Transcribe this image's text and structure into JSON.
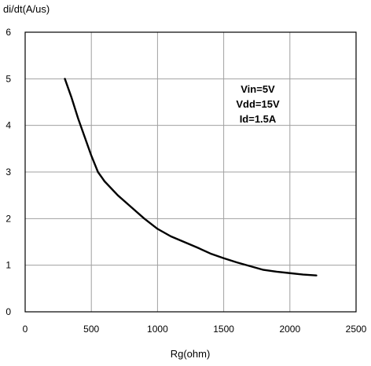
{
  "chart_data": {
    "type": "line",
    "title": "",
    "xlabel": "Rg(ohm)",
    "ylabel": "di/dt(A/us)",
    "xlim": [
      0,
      2500
    ],
    "ylim": [
      0,
      6
    ],
    "x_ticks": [
      0,
      500,
      1000,
      1500,
      2000,
      2500
    ],
    "y_ticks": [
      0,
      1,
      2,
      3,
      4,
      5,
      6
    ],
    "x_tick_labels": [
      "0",
      "500",
      "1000",
      "1500",
      "2000",
      "2500"
    ],
    "y_tick_labels": [
      "0",
      "1",
      "2",
      "3",
      "4",
      "5",
      "6"
    ],
    "grid": true,
    "legend": "none",
    "line_color": "#000000",
    "grid_color": "#a0a0a0",
    "annotations": [
      "Vin=5V",
      "Vdd=15V",
      "Id=1.5A"
    ],
    "series": [
      {
        "x": [
          300,
          350,
          400,
          450,
          500,
          550,
          600,
          700,
          800,
          900,
          1000,
          1100,
          1200,
          1300,
          1400,
          1500,
          1600,
          1700,
          1800,
          1900,
          2000,
          2100,
          2200
        ],
        "y": [
          5.0,
          4.6,
          4.15,
          3.75,
          3.35,
          3.0,
          2.8,
          2.5,
          2.25,
          2.0,
          1.78,
          1.62,
          1.5,
          1.38,
          1.25,
          1.15,
          1.06,
          0.98,
          0.9,
          0.86,
          0.83,
          0.8,
          0.78
        ]
      }
    ]
  }
}
